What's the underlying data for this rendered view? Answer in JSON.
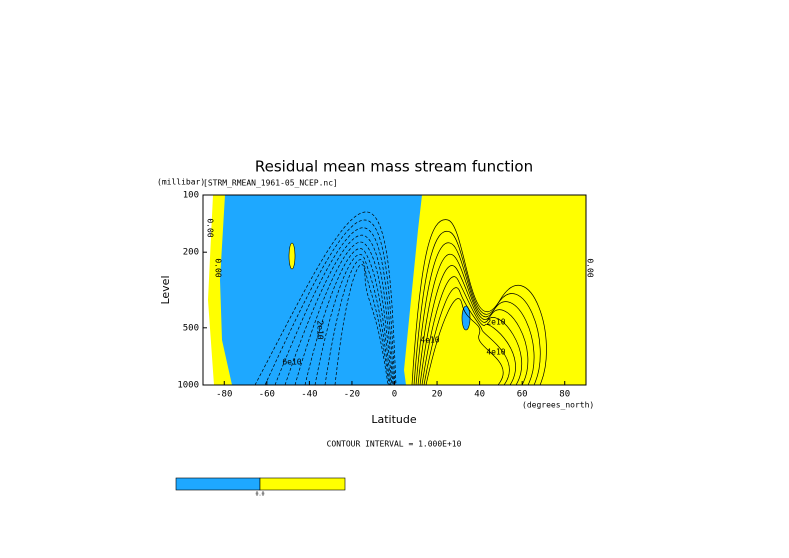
{
  "chart_data": {
    "type": "contour",
    "title": "Residual mean mass stream function",
    "subtitle": "[STRM_RMEAN_1961-05_NCEP.nc]",
    "y_unit": "(millibar)",
    "y_label": "Level",
    "x_label": "Latitude",
    "x_unit": "(degrees_north)",
    "note": "CONTOUR INTERVAL = 1.000E+10",
    "xlim": [
      -90,
      90
    ],
    "xticks": [
      -80,
      -60,
      -40,
      -20,
      0,
      20,
      40,
      60,
      80
    ],
    "ylim": [
      1000,
      100
    ],
    "yticks": [
      100,
      200,
      500,
      1000
    ],
    "log_y": true,
    "negative_color": "#1ea8ff",
    "positive_color": "#ffff00",
    "contour_labels": [
      "0.00",
      "0.00",
      "2e10",
      "6e10",
      "4e10",
      "2e10",
      "4e10",
      "0.00"
    ],
    "colorbar_label": "0.0"
  }
}
